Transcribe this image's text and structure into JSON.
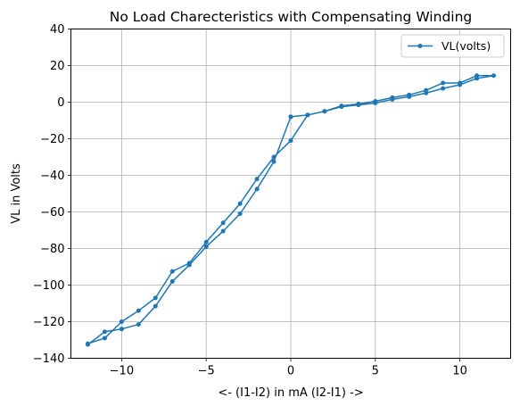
{
  "chart_data": {
    "type": "line",
    "title": "No Load Charecteristics with Compensating Winding",
    "xlabel": "<- (I1-I2) in mA (I2-I1) ->",
    "ylabel": "VL in Volts",
    "xlim": [
      -13,
      13
    ],
    "ylim": [
      -140,
      40
    ],
    "xticks": [
      -10,
      -5,
      0,
      5,
      10
    ],
    "yticks": [
      -140,
      -120,
      -100,
      -80,
      -60,
      -40,
      -20,
      0,
      20,
      40
    ],
    "grid": true,
    "legend_position": "top-right",
    "series": [
      {
        "name": "VL(volts)",
        "color": "#1f77b4",
        "marker": "circle",
        "points": [
          [
            -12,
            -132
          ],
          [
            -11,
            -129
          ],
          [
            -10,
            -120
          ],
          [
            -9,
            -114
          ],
          [
            -8,
            -107
          ],
          [
            -7,
            -92.5
          ],
          [
            -6,
            -88
          ],
          [
            -5,
            -76.5
          ],
          [
            -4,
            -66
          ],
          [
            -3,
            -55.5
          ],
          [
            -2,
            -42
          ],
          [
            -1,
            -30
          ],
          [
            0,
            -21
          ],
          [
            1,
            -7
          ],
          [
            2,
            -5
          ],
          [
            3,
            -2
          ],
          [
            4,
            -1
          ],
          [
            5,
            0.5
          ],
          [
            6,
            2.5
          ],
          [
            7,
            4
          ],
          [
            8,
            6.5
          ],
          [
            9,
            10.5
          ],
          [
            10,
            10.5
          ],
          [
            11,
            14.5
          ],
          [
            12,
            14.5
          ],
          [
            11,
            13
          ],
          [
            10,
            9.5
          ],
          [
            9,
            7.5
          ],
          [
            8,
            5
          ],
          [
            7,
            3
          ],
          [
            6,
            1.5
          ],
          [
            5,
            -0.5
          ],
          [
            4,
            -1.5
          ],
          [
            3,
            -2.5
          ],
          [
            2,
            -5
          ],
          [
            1,
            -7
          ],
          [
            0,
            -8
          ],
          [
            0,
            -8
          ],
          [
            -1,
            -32.5
          ],
          [
            -2,
            -47.5
          ],
          [
            -3,
            -61
          ],
          [
            -4,
            -70.5
          ],
          [
            -5,
            -79
          ],
          [
            -6,
            -89
          ],
          [
            -7,
            -98
          ],
          [
            -8,
            -111.5
          ],
          [
            -9,
            -121.5
          ],
          [
            -10,
            -124
          ],
          [
            -11,
            -125.5
          ],
          [
            -12,
            -132.5
          ]
        ]
      }
    ]
  }
}
